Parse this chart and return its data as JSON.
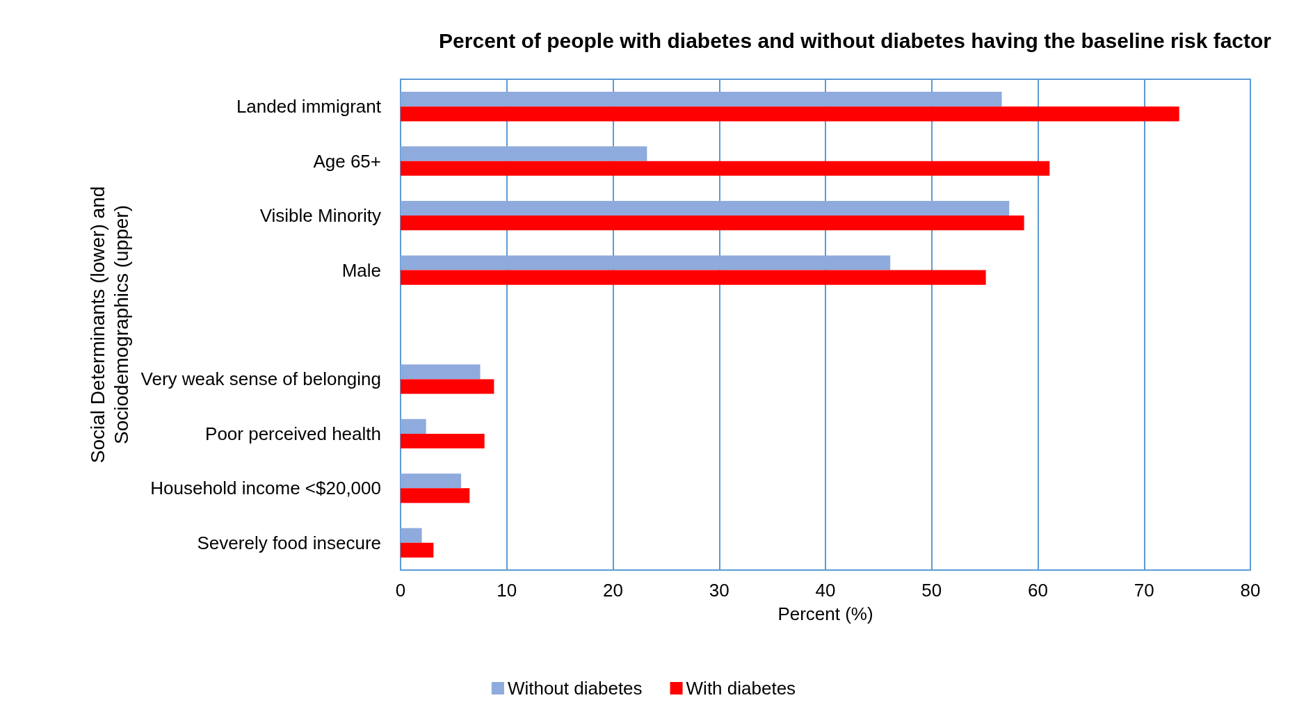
{
  "chart_data": {
    "type": "bar",
    "orientation": "horizontal",
    "title": "Percent of people with diabetes and without diabetes having the baseline risk factor",
    "xlabel": "Percent (%)",
    "ylabel": "Social Determinants (lower) and\nSociodemographics (upper)",
    "categories": [
      "Landed immigrant",
      "Age 65+",
      "Visible Minority",
      "Male",
      null,
      "Very weak sense of belonging",
      "Poor perceived health",
      "Household income <$20,000",
      "Severely food insecure"
    ],
    "series": [
      {
        "name": "Without diabetes",
        "color": "#8faadc",
        "values": [
          56.6,
          23.2,
          57.3,
          46.1,
          null,
          7.5,
          2.4,
          5.7,
          2.0
        ]
      },
      {
        "name": "With diabetes",
        "color": "#ff0000",
        "values": [
          73.3,
          61.1,
          58.7,
          55.1,
          null,
          8.8,
          7.9,
          6.5,
          3.1
        ]
      }
    ],
    "xlim": [
      0,
      80
    ],
    "xticks": [
      0,
      10,
      20,
      30,
      40,
      50,
      60,
      70,
      80
    ],
    "grid": "x",
    "legend": "bottom"
  }
}
